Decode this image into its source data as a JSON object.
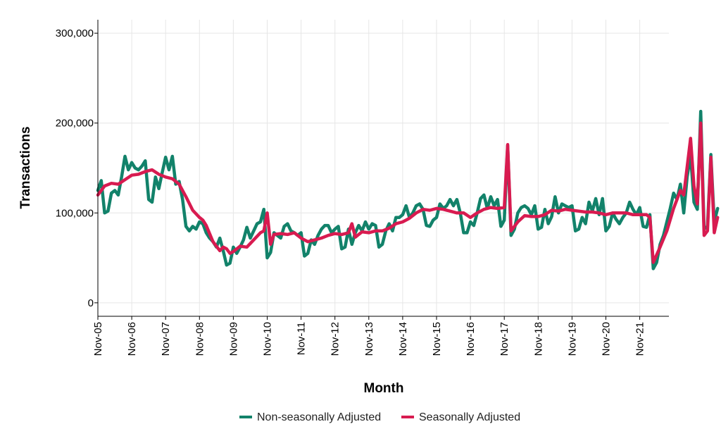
{
  "chart_data": {
    "type": "line",
    "xlabel": "Month",
    "ylabel": "Transactions",
    "ylim": [
      -15000,
      315000
    ],
    "y_ticks": [
      0,
      100000,
      200000,
      300000
    ],
    "y_tick_labels": [
      "0",
      "100,000",
      "200,000",
      "300,000"
    ],
    "x_tick_labels": [
      "Nov-05",
      "Nov-06",
      "Nov-07",
      "Nov-08",
      "Nov-09",
      "Nov-10",
      "Nov-11",
      "Nov-12",
      "Nov-13",
      "Nov-14",
      "Nov-15",
      "Nov-16",
      "Nov-17",
      "Nov-18",
      "Nov-19",
      "Nov-20",
      "Nov-21"
    ],
    "x_start": "Nov-05",
    "grid": true,
    "legend_position": "bottom",
    "series": [
      {
        "name": "Non-seasonally Adjusted",
        "color": "#12826a",
        "points": [
          [
            0.0,
            125000
          ],
          [
            0.1,
            136000
          ],
          [
            0.2,
            100000
          ],
          [
            0.3,
            102000
          ],
          [
            0.4,
            122000
          ],
          [
            0.5,
            125000
          ],
          [
            0.6,
            120000
          ],
          [
            0.7,
            140000
          ],
          [
            0.8,
            163000
          ],
          [
            0.9,
            148000
          ],
          [
            1.0,
            156000
          ],
          [
            1.1,
            150000
          ],
          [
            1.2,
            148000
          ],
          [
            1.3,
            152000
          ],
          [
            1.4,
            158000
          ],
          [
            1.5,
            115000
          ],
          [
            1.6,
            112000
          ],
          [
            1.7,
            140000
          ],
          [
            1.8,
            127000
          ],
          [
            1.9,
            145000
          ],
          [
            2.0,
            162000
          ],
          [
            2.1,
            148000
          ],
          [
            2.2,
            163000
          ],
          [
            2.3,
            132000
          ],
          [
            2.4,
            135000
          ],
          [
            2.5,
            115000
          ],
          [
            2.6,
            85000
          ],
          [
            2.7,
            80000
          ],
          [
            2.8,
            85000
          ],
          [
            2.9,
            82000
          ],
          [
            3.0,
            90000
          ],
          [
            3.1,
            88000
          ],
          [
            3.2,
            78000
          ],
          [
            3.3,
            72000
          ],
          [
            3.4,
            68000
          ],
          [
            3.5,
            62000
          ],
          [
            3.6,
            72000
          ],
          [
            3.7,
            58000
          ],
          [
            3.8,
            42000
          ],
          [
            3.9,
            44000
          ],
          [
            4.0,
            62000
          ],
          [
            4.1,
            55000
          ],
          [
            4.2,
            62000
          ],
          [
            4.3,
            70000
          ],
          [
            4.4,
            84000
          ],
          [
            4.5,
            72000
          ],
          [
            4.6,
            80000
          ],
          [
            4.7,
            88000
          ],
          [
            4.8,
            90000
          ],
          [
            4.9,
            104000
          ],
          [
            5.0,
            50000
          ],
          [
            5.1,
            56000
          ],
          [
            5.2,
            78000
          ],
          [
            5.3,
            75000
          ],
          [
            5.4,
            72000
          ],
          [
            5.5,
            85000
          ],
          [
            5.6,
            88000
          ],
          [
            5.7,
            80000
          ],
          [
            5.8,
            78000
          ],
          [
            5.9,
            75000
          ],
          [
            6.0,
            78000
          ],
          [
            6.1,
            52000
          ],
          [
            6.2,
            55000
          ],
          [
            6.3,
            70000
          ],
          [
            6.4,
            65000
          ],
          [
            6.5,
            75000
          ],
          [
            6.6,
            82000
          ],
          [
            6.7,
            86000
          ],
          [
            6.8,
            86000
          ],
          [
            6.9,
            78000
          ],
          [
            7.0,
            82000
          ],
          [
            7.1,
            85000
          ],
          [
            7.2,
            60000
          ],
          [
            7.3,
            62000
          ],
          [
            7.4,
            82000
          ],
          [
            7.5,
            65000
          ],
          [
            7.6,
            78000
          ],
          [
            7.7,
            86000
          ],
          [
            7.8,
            80000
          ],
          [
            7.9,
            90000
          ],
          [
            8.0,
            82000
          ],
          [
            8.1,
            88000
          ],
          [
            8.2,
            86000
          ],
          [
            8.3,
            62000
          ],
          [
            8.4,
            65000
          ],
          [
            8.5,
            80000
          ],
          [
            8.6,
            88000
          ],
          [
            8.7,
            80000
          ],
          [
            8.8,
            95000
          ],
          [
            8.9,
            95000
          ],
          [
            9.0,
            98000
          ],
          [
            9.1,
            108000
          ],
          [
            9.2,
            95000
          ],
          [
            9.3,
            100000
          ],
          [
            9.4,
            108000
          ],
          [
            9.5,
            110000
          ],
          [
            9.6,
            104000
          ],
          [
            9.7,
            86000
          ],
          [
            9.8,
            85000
          ],
          [
            9.9,
            92000
          ],
          [
            10.0,
            95000
          ],
          [
            10.1,
            110000
          ],
          [
            10.2,
            105000
          ],
          [
            10.3,
            108000
          ],
          [
            10.4,
            115000
          ],
          [
            10.5,
            108000
          ],
          [
            10.6,
            115000
          ],
          [
            10.7,
            100000
          ],
          [
            10.8,
            78000
          ],
          [
            10.9,
            78000
          ],
          [
            11.0,
            90000
          ],
          [
            11.1,
            86000
          ],
          [
            11.2,
            100000
          ],
          [
            11.3,
            116000
          ],
          [
            11.4,
            120000
          ],
          [
            11.5,
            105000
          ],
          [
            11.6,
            118000
          ],
          [
            11.7,
            108000
          ],
          [
            11.8,
            115000
          ],
          [
            11.9,
            85000
          ],
          [
            12.0,
            92000
          ],
          [
            12.1,
            175000
          ],
          [
            12.2,
            75000
          ],
          [
            12.3,
            82000
          ],
          [
            12.4,
            100000
          ],
          [
            12.5,
            106000
          ],
          [
            12.6,
            108000
          ],
          [
            12.7,
            105000
          ],
          [
            12.8,
            98000
          ],
          [
            12.9,
            108000
          ],
          [
            13.0,
            82000
          ],
          [
            13.1,
            84000
          ],
          [
            13.2,
            104000
          ],
          [
            13.3,
            88000
          ],
          [
            13.4,
            96000
          ],
          [
            13.5,
            118000
          ],
          [
            13.6,
            100000
          ],
          [
            13.7,
            110000
          ],
          [
            13.8,
            108000
          ],
          [
            13.9,
            106000
          ],
          [
            14.0,
            108000
          ],
          [
            14.1,
            80000
          ],
          [
            14.2,
            82000
          ],
          [
            14.3,
            95000
          ],
          [
            14.4,
            88000
          ],
          [
            14.5,
            112000
          ],
          [
            14.6,
            102000
          ],
          [
            14.7,
            116000
          ],
          [
            14.8,
            98000
          ],
          [
            14.9,
            116000
          ],
          [
            15.0,
            80000
          ],
          [
            15.1,
            85000
          ],
          [
            15.2,
            100000
          ],
          [
            15.3,
            93000
          ],
          [
            15.4,
            88000
          ],
          [
            15.5,
            95000
          ],
          [
            15.6,
            100000
          ],
          [
            15.7,
            112000
          ],
          [
            15.8,
            104000
          ],
          [
            15.9,
            98000
          ],
          [
            16.0,
            106000
          ],
          [
            16.1,
            85000
          ],
          [
            16.2,
            84000
          ],
          [
            16.3,
            98000
          ],
          [
            16.4,
            38000
          ],
          [
            16.5,
            45000
          ],
          [
            16.6,
            65000
          ],
          [
            16.7,
            75000
          ],
          [
            16.8,
            90000
          ],
          [
            16.9,
            105000
          ],
          [
            17.0,
            122000
          ],
          [
            17.1,
            115000
          ],
          [
            17.2,
            132000
          ],
          [
            17.3,
            100000
          ],
          [
            17.4,
            140000
          ],
          [
            17.5,
            165000
          ],
          [
            17.6,
            112000
          ],
          [
            17.7,
            104000
          ],
          [
            17.8,
            213000
          ],
          [
            17.9,
            82000
          ],
          [
            18.0,
            85000
          ],
          [
            18.1,
            165000
          ],
          [
            18.2,
            90000
          ],
          [
            18.3,
            105000
          ]
        ]
      },
      {
        "name": "Seasonally Adjusted",
        "color": "#d81b50",
        "points": [
          [
            0.0,
            120000
          ],
          [
            0.2,
            130000
          ],
          [
            0.4,
            133000
          ],
          [
            0.6,
            132000
          ],
          [
            0.8,
            137000
          ],
          [
            1.0,
            142000
          ],
          [
            1.2,
            143000
          ],
          [
            1.4,
            146000
          ],
          [
            1.6,
            148000
          ],
          [
            1.8,
            143000
          ],
          [
            2.0,
            140000
          ],
          [
            2.2,
            138000
          ],
          [
            2.4,
            132000
          ],
          [
            2.6,
            118000
          ],
          [
            2.8,
            103000
          ],
          [
            3.0,
            95000
          ],
          [
            3.1,
            92000
          ],
          [
            3.2,
            86000
          ],
          [
            3.4,
            68000
          ],
          [
            3.6,
            58000
          ],
          [
            3.7,
            62000
          ],
          [
            3.8,
            60000
          ],
          [
            3.9,
            55000
          ],
          [
            4.0,
            57000
          ],
          [
            4.2,
            63000
          ],
          [
            4.4,
            62000
          ],
          [
            4.6,
            70000
          ],
          [
            4.8,
            78000
          ],
          [
            4.9,
            80000
          ],
          [
            5.0,
            100000
          ],
          [
            5.1,
            65000
          ],
          [
            5.2,
            76000
          ],
          [
            5.4,
            77000
          ],
          [
            5.6,
            76000
          ],
          [
            5.8,
            78000
          ],
          [
            6.0,
            72000
          ],
          [
            6.2,
            68000
          ],
          [
            6.4,
            70000
          ],
          [
            6.6,
            72000
          ],
          [
            6.8,
            75000
          ],
          [
            7.0,
            77000
          ],
          [
            7.2,
            76000
          ],
          [
            7.4,
            78000
          ],
          [
            7.5,
            88000
          ],
          [
            7.6,
            73000
          ],
          [
            7.8,
            79000
          ],
          [
            8.0,
            78000
          ],
          [
            8.2,
            80000
          ],
          [
            8.4,
            80000
          ],
          [
            8.6,
            83000
          ],
          [
            8.8,
            88000
          ],
          [
            9.0,
            90000
          ],
          [
            9.2,
            94000
          ],
          [
            9.4,
            100000
          ],
          [
            9.6,
            104000
          ],
          [
            9.8,
            103000
          ],
          [
            10.0,
            105000
          ],
          [
            10.2,
            104000
          ],
          [
            10.4,
            102000
          ],
          [
            10.6,
            100000
          ],
          [
            10.8,
            100000
          ],
          [
            11.0,
            95000
          ],
          [
            11.2,
            100000
          ],
          [
            11.4,
            104000
          ],
          [
            11.6,
            106000
          ],
          [
            11.8,
            105000
          ],
          [
            12.0,
            106000
          ],
          [
            12.1,
            176000
          ],
          [
            12.2,
            80000
          ],
          [
            12.4,
            90000
          ],
          [
            12.6,
            97000
          ],
          [
            12.8,
            96000
          ],
          [
            13.0,
            96000
          ],
          [
            13.2,
            98000
          ],
          [
            13.4,
            103000
          ],
          [
            13.6,
            102000
          ],
          [
            13.8,
            104000
          ],
          [
            14.0,
            103000
          ],
          [
            14.2,
            102000
          ],
          [
            14.4,
            101000
          ],
          [
            14.6,
            101000
          ],
          [
            14.8,
            100000
          ],
          [
            15.0,
            98000
          ],
          [
            15.2,
            100000
          ],
          [
            15.4,
            100000
          ],
          [
            15.6,
            100000
          ],
          [
            15.8,
            98000
          ],
          [
            16.0,
            98000
          ],
          [
            16.2,
            98000
          ],
          [
            16.3,
            95000
          ],
          [
            16.4,
            45000
          ],
          [
            16.6,
            62000
          ],
          [
            16.8,
            80000
          ],
          [
            17.0,
            105000
          ],
          [
            17.2,
            125000
          ],
          [
            17.3,
            120000
          ],
          [
            17.5,
            183000
          ],
          [
            17.6,
            130000
          ],
          [
            17.7,
            110000
          ],
          [
            17.8,
            200000
          ],
          [
            17.9,
            75000
          ],
          [
            18.0,
            80000
          ],
          [
            18.1,
            162000
          ],
          [
            18.2,
            78000
          ],
          [
            18.3,
            95000
          ]
        ]
      }
    ]
  }
}
